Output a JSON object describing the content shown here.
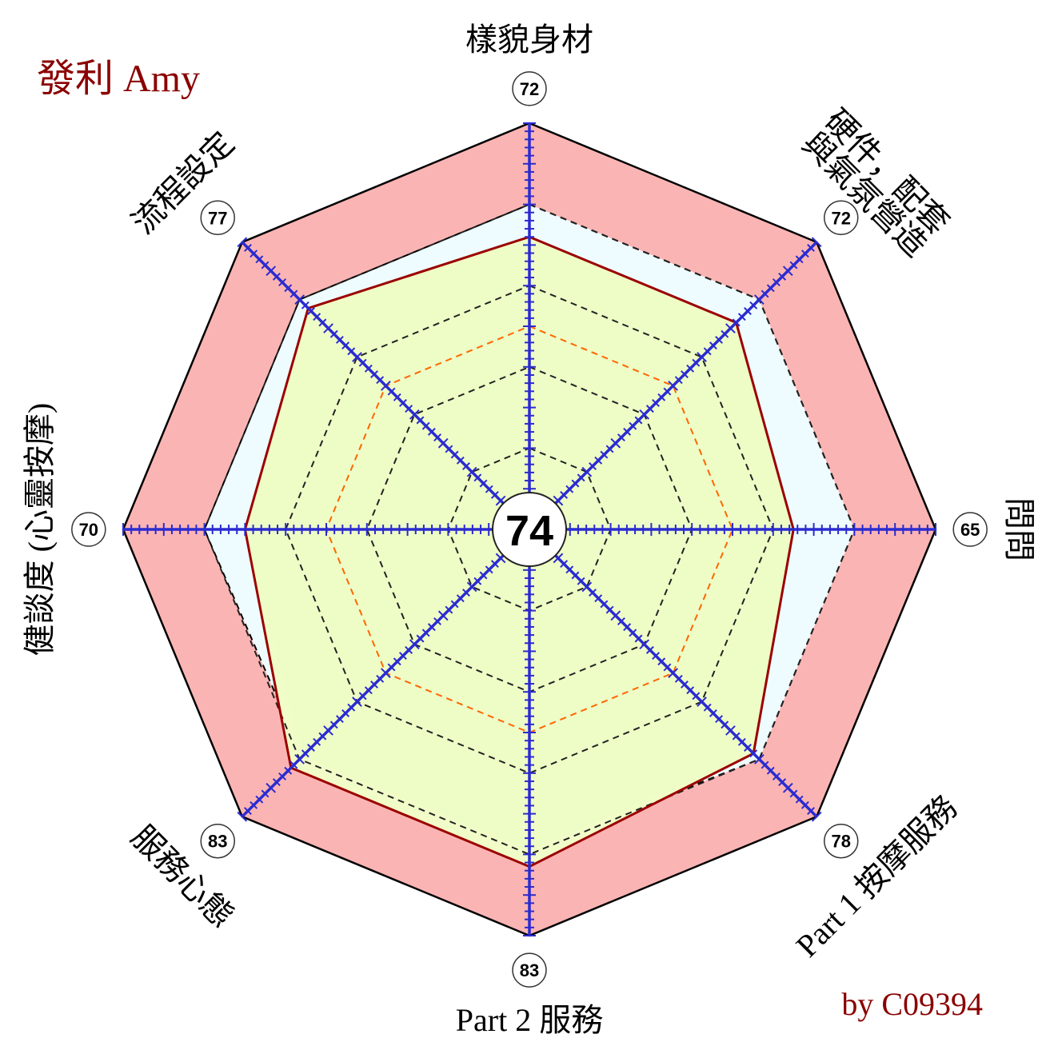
{
  "title": "發利 Amy",
  "credit": "by C09394",
  "colors": {
    "title": "#8b0000",
    "credit": "#8b0000",
    "outer_band": "#fbb4b4",
    "expected_fill": "#eefcff",
    "score_fill": "#f1fdc8",
    "score_line": "#9b0000",
    "axis": "#2b2bd0",
    "ring": "#222222",
    "mid_ring": "#ff6600"
  },
  "chart_data": {
    "type": "radar",
    "overall_score": "74",
    "scale_max": 100,
    "categories": [
      "樣貌身材",
      "硬件，配套 與氣氛營造",
      "問問",
      "Part 1 按摩服務",
      "Part 2 服務",
      "服務心態",
      "健談度 (心靈按摩)",
      "流程設定"
    ],
    "category_lines": [
      [
        "樣貌身材"
      ],
      [
        "硬件，配套",
        "與氣氛營造"
      ],
      [
        "問問"
      ],
      [
        "Part 1 按摩服務"
      ],
      [
        "Part 2 服務"
      ],
      [
        "服務心態"
      ],
      [
        "健談度 (心靈按摩)"
      ],
      [
        "流程設定"
      ]
    ],
    "badge_labels": [
      "72",
      "72",
      "65",
      "78",
      "83",
      "83",
      "70",
      "77"
    ],
    "series": [
      {
        "name": "score",
        "values": [
          72,
          72,
          65,
          78,
          83,
          83,
          70,
          77
        ]
      },
      {
        "name": "reference",
        "values": [
          80,
          80,
          80,
          80,
          79,
          79,
          80,
          80
        ]
      }
    ],
    "grid_rings": [
      20,
      40,
      50,
      60,
      80
    ],
    "highlight_ring": 50
  }
}
